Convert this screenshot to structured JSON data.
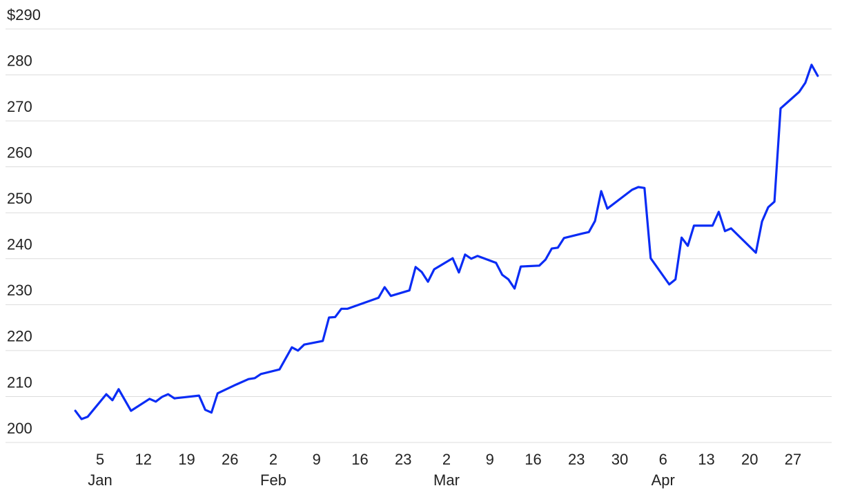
{
  "chart_data": {
    "type": "line",
    "color": "#0a2cf5",
    "grid": true,
    "ylim": [
      200,
      290
    ],
    "yticks": [
      200,
      210,
      220,
      230,
      240,
      250,
      260,
      270,
      280,
      {
        "value": 290,
        "label": "$290"
      }
    ],
    "xticks": [
      {
        "value": "Jan 5",
        "label": "5"
      },
      {
        "value": "Jan 12",
        "label": "12"
      },
      {
        "value": "Jan 19",
        "label": "19"
      },
      {
        "value": "Jan 26",
        "label": "26"
      },
      {
        "value": "Feb 2",
        "label": "2"
      },
      {
        "value": "Feb 9",
        "label": "9"
      },
      {
        "value": "Feb 16",
        "label": "16"
      },
      {
        "value": "Feb 23",
        "label": "23"
      },
      {
        "value": "Mar 2",
        "label": "2"
      },
      {
        "value": "Mar 9",
        "label": "9"
      },
      {
        "value": "Mar 16",
        "label": "16"
      },
      {
        "value": "Mar 23",
        "label": "23"
      },
      {
        "value": "Mar 30",
        "label": "30"
      },
      {
        "value": "Apr 6",
        "label": "6"
      },
      {
        "value": "Apr 13",
        "label": "13"
      },
      {
        "value": "Apr 20",
        "label": "20"
      },
      {
        "value": "Apr 27",
        "label": "27"
      }
    ],
    "month_labels": [
      {
        "value": "Jan 5",
        "label": "Jan"
      },
      {
        "value": "Feb 2",
        "label": "Feb"
      },
      {
        "value": "Mar 2",
        "label": "Mar"
      },
      {
        "value": "Apr 6",
        "label": "Apr"
      }
    ],
    "x": [
      "Jan 1",
      "Jan 2",
      "Jan 3",
      "Jan 6",
      "Jan 7",
      "Jan 8",
      "Jan 10",
      "Jan 13",
      "Jan 14",
      "Jan 15",
      "Jan 16",
      "Jan 17",
      "Jan 21",
      "Jan 22",
      "Jan 23",
      "Jan 24",
      "Jan 27",
      "Jan 29",
      "Jan 30",
      "Jan 31",
      "Feb 3",
      "Feb 5",
      "Feb 6",
      "Feb 7",
      "Feb 10",
      "Feb 11",
      "Feb 12",
      "Feb 13",
      "Feb 14",
      "Feb 19",
      "Feb 20",
      "Feb 21",
      "Feb 24",
      "Feb 25",
      "Feb 26",
      "Feb 27",
      "Feb 28",
      "Mar 3",
      "Mar 4",
      "Mar 5",
      "Mar 6",
      "Mar 7",
      "Mar 10",
      "Mar 11",
      "Mar 12",
      "Mar 13",
      "Mar 14",
      "Mar 17",
      "Mar 18",
      "Mar 19",
      "Mar 20",
      "Mar 21",
      "Mar 24",
      "Mar 25",
      "Mar 26",
      "Mar 27",
      "Mar 28",
      "Apr 1",
      "Apr 2",
      "Apr 3",
      "Apr 4",
      "Apr 7",
      "Apr 8",
      "Apr 9",
      "Apr 10",
      "Apr 11",
      "Apr 14",
      "Apr 15",
      "Apr 16",
      "Apr 17",
      "Apr 21",
      "Apr 22",
      "Apr 23",
      "Apr 24",
      "Apr 25",
      "Apr 28",
      "Apr 29",
      "Apr 30",
      "May 1"
    ],
    "values": [
      206.9,
      205.1,
      205.6,
      210.5,
      209.2,
      211.6,
      206.9,
      209.5,
      208.9,
      209.9,
      210.5,
      209.6,
      210.2,
      207.1,
      206.5,
      210.7,
      212.6,
      213.8,
      214.0,
      214.9,
      215.9,
      220.7,
      220.0,
      221.3,
      222.1,
      227.2,
      227.3,
      229.1,
      229.1,
      231.5,
      233.8,
      231.9,
      233.1,
      238.2,
      237.1,
      235.0,
      237.7,
      240.1,
      237.0,
      240.9,
      240.0,
      240.6,
      239.1,
      236.5,
      235.5,
      233.5,
      238.3,
      238.5,
      239.8,
      242.2,
      242.4,
      244.5,
      245.5,
      245.8,
      248.2,
      254.7,
      250.9,
      255.0,
      255.6,
      255.4,
      240.1,
      234.4,
      235.5,
      244.6,
      242.8,
      247.2,
      247.2,
      250.2,
      246.0,
      246.6,
      241.3,
      248.1,
      251.2,
      252.4,
      272.7,
      276.3,
      278.3,
      282.2,
      279.8
    ]
  }
}
